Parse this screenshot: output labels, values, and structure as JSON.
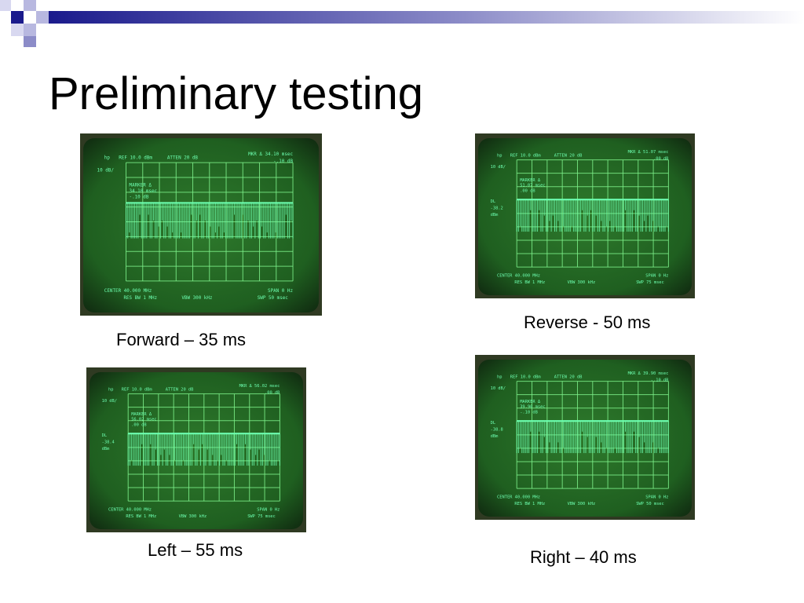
{
  "slide": {
    "title": "Preliminary testing"
  },
  "colors": {
    "screen": "#1f5f20",
    "trace": "#6dffb0",
    "grid": "#7cf08a",
    "bezel": "#2f3a22",
    "accent": "#1a1a8c"
  },
  "panels": [
    {
      "caption": "Forward – 35 ms",
      "readout": {
        "hp": "hp",
        "ref": "REF 10.0 dBm",
        "atten": "ATTEN 20 dB",
        "mkr": "MKR Δ 34.10 msec",
        "mkr2": "-.10 dB",
        "scale": "10 dB/",
        "dl": "",
        "dl_val": "",
        "dl_unit": "",
        "marker": "MARKER Δ",
        "marker_time": "34.10 msec",
        "marker_db": "-.10 dB",
        "center": "CENTER 40.000 MHz",
        "resbw": "RES BW 1 MHz",
        "vbw": "VBW 300 kHz",
        "span": "SPAN 0 Hz",
        "swp": "SWP 50 msec"
      },
      "trace_level": 0.34,
      "trace_density": 0.75
    },
    {
      "caption": "Reverse - 50 ms",
      "readout": {
        "hp": "hp",
        "ref": "REF 10.0 dBm",
        "atten": "ATTEN 20 dB",
        "mkr": "MKR Δ 51.07 msec",
        "mkr2": ".00 dB",
        "scale": "10 dB/",
        "dl": "DL",
        "dl_val": "-38.2",
        "dl_unit": "dBm",
        "marker": "MARKER Δ",
        "marker_time": "51.07 msec",
        "marker_db": ".00 dB",
        "center": "CENTER 40.000 MHz",
        "resbw": "RES BW 1 MHz",
        "vbw": "VBW 300 kHz",
        "span": "SPAN 0 Hz",
        "swp": "SWP 75 msec"
      },
      "trace_level": 0.37,
      "trace_density": 0.67
    },
    {
      "caption": "Left – 55 ms",
      "readout": {
        "hp": "hp",
        "ref": "REF 10.0 dBm",
        "atten": "ATTEN 20 dB",
        "mkr": "MKR Δ 56.02 msec",
        "mkr2": ".00 dB",
        "scale": "10 dB/",
        "dl": "DL",
        "dl_val": "-38.4",
        "dl_unit": "dBm",
        "marker": "MARKER Δ",
        "marker_time": "56.02 msec",
        "marker_db": ".00 dB",
        "center": "CENTER 40.000 MHz",
        "resbw": "RES BW 1 MHz",
        "vbw": "VBW 300 kHz",
        "span": "SPAN 0 Hz",
        "swp": "SWP 75 msec"
      },
      "trace_level": 0.37,
      "trace_density": 0.73
    },
    {
      "caption": "Right – 40 ms",
      "readout": {
        "hp": "hp",
        "ref": "REF 10.0 dBm",
        "atten": "ATTEN 20 dB",
        "mkr": "MKR Δ 39.90 msec",
        "mkr2": "-.10 dB",
        "scale": "10 dB/",
        "dl": "DL",
        "dl_val": "-38.8",
        "dl_unit": "dBm",
        "marker": "MARKER Δ",
        "marker_time": "39.90 msec",
        "marker_db": "-.10 dB",
        "center": "CENTER 40.000 MHz",
        "resbw": "RES BW 1 MHz",
        "vbw": "VBW 300 kHz",
        "span": "SPAN 0 Hz",
        "swp": "SWP 50 msec"
      },
      "trace_level": 0.37,
      "trace_density": 0.8
    }
  ]
}
